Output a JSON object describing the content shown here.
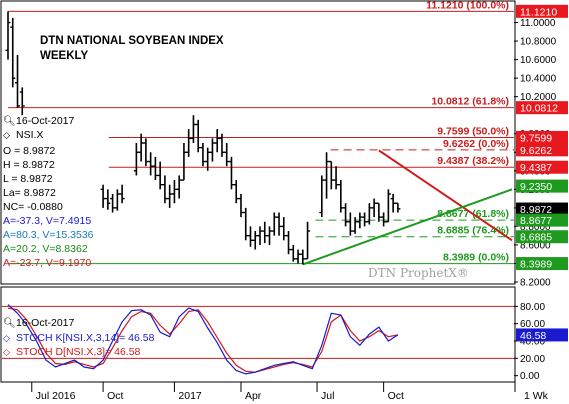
{
  "chart_data": {
    "type": "ohlc",
    "title": "DTN NATIONAL SOYBEAN INDEX",
    "subtitle": "WEEKLY",
    "watermark": "DTN ProphetX®",
    "info": {
      "date": "16-Oct-2017",
      "symbol": "NSI.X",
      "lines": [
        {
          "text": "O = 8.9872",
          "color": "#000000"
        },
        {
          "text": "H = 8.9872",
          "color": "#000000"
        },
        {
          "text": "L = 8.9872",
          "color": "#000000"
        },
        {
          "text": "La= 8.9872",
          "color": "#000000"
        },
        {
          "text": "NC= -0.0880",
          "color": "#000000"
        },
        {
          "text": "A=-37.3, V=7.4915",
          "color": "#1a1ad0"
        },
        {
          "text": "A=80.3, V=15.3536",
          "color": "#1a7ab8"
        },
        {
          "text": "A=20.2, V=8.8362",
          "color": "#1a8a1a"
        },
        {
          "text": "A=-23.7, V=9.1970",
          "color": "#d01a1a"
        }
      ]
    },
    "price_axis": {
      "min": 8.2,
      "max": 11.2,
      "ticks": [
        11.0,
        10.8,
        10.6,
        10.4,
        10.2,
        9.8,
        9.6,
        9.4,
        9.2,
        9.0,
        8.8,
        8.6,
        8.4,
        8.2
      ],
      "tick_labels": [
        "11.0000",
        "10.8000",
        "10.6000",
        "10.4000",
        "10.2000",
        "9.8000",
        "9.6000",
        "9.4000",
        "9.2000",
        "9.0000",
        "8.8000",
        "8.6000",
        "8.4000",
        "8.2000"
      ]
    },
    "price_badges": [
      {
        "value": 11.121,
        "label": "11.1210",
        "color": "#e8191e"
      },
      {
        "value": 10.0812,
        "label": "10.0812",
        "color": "#e8191e"
      },
      {
        "value": 9.7599,
        "label": "9.7599",
        "color": "#e8191e"
      },
      {
        "value": 9.6262,
        "label": "9.6262",
        "color": "#e8191e"
      },
      {
        "value": 9.4387,
        "label": "9.4387",
        "color": "#e8191e"
      },
      {
        "value": 9.235,
        "label": "9.2350",
        "color": "#1e9a1e"
      },
      {
        "value": 8.9872,
        "label": "8.9872",
        "color": "#000000"
      },
      {
        "value": 8.8677,
        "label": "8.8677",
        "color": "#1e9a1e"
      },
      {
        "value": 8.6885,
        "label": "8.6885",
        "color": "#1e9a1e"
      },
      {
        "value": 8.3989,
        "label": "8.3989",
        "color": "#1e9a1e"
      }
    ],
    "fib_levels": [
      {
        "value": 11.121,
        "label": "11.1210 (100.0%)",
        "color": "#c81e1e",
        "style": "solid",
        "x_from": 0.0
      },
      {
        "value": 10.0812,
        "label": "10.0812 (61.8%)",
        "color": "#c81e1e",
        "style": "solid",
        "x_from": 0.0
      },
      {
        "value": 9.7599,
        "label": "9.7599 (50.0%)",
        "color": "#c81e1e",
        "style": "solid",
        "x_from": 0.2
      },
      {
        "value": 9.6262,
        "label": "9.6262 (0.0%)",
        "color": "#c81e1e",
        "style": "dash",
        "x_from": 0.64
      },
      {
        "value": 9.4387,
        "label": "9.4387 (38.2%)",
        "color": "#c81e1e",
        "style": "solid",
        "x_from": 0.2
      },
      {
        "value": 8.8677,
        "label": "8.8677 (61.8%)",
        "color": "#1e9a1e",
        "style": "dash",
        "x_from": 0.61
      },
      {
        "value": 8.6885,
        "label": "8.6885 (76.4%)",
        "color": "#1e9a1e",
        "style": "dash",
        "x_from": 0.61
      },
      {
        "value": 8.3989,
        "label": "8.3989 (0.0%)",
        "color": "#1e9a1e",
        "style": "solid",
        "x_from": 0.0
      }
    ],
    "trendlines": [
      {
        "color": "#d01a1a",
        "from": [
          78,
          9.62
        ],
        "to": [
          106,
          8.65
        ]
      },
      {
        "color": "#1e9a1e",
        "from": [
          62,
          8.39
        ],
        "to": [
          106,
          9.2
        ]
      }
    ],
    "ohlc": [
      {
        "x": 0,
        "h": 11.12,
        "l": 10.6,
        "o": 10.7,
        "c": 11.0
      },
      {
        "x": 1,
        "h": 11.05,
        "l": 10.3,
        "o": 10.95,
        "c": 10.4
      },
      {
        "x": 2,
        "h": 10.65,
        "l": 10.08,
        "o": 10.35,
        "c": 10.1
      },
      {
        "x": 3,
        "h": 10.3,
        "l": 10.0,
        "o": 10.25,
        "c": 10.1
      },
      {
        "x": 20,
        "h": 9.25,
        "l": 9.0,
        "o": 9.2,
        "c": 9.1
      },
      {
        "x": 21,
        "h": 9.2,
        "l": 8.98,
        "o": 9.1,
        "c": 9.05
      },
      {
        "x": 22,
        "h": 9.15,
        "l": 8.95,
        "o": 9.1,
        "c": 9.0
      },
      {
        "x": 23,
        "h": 9.2,
        "l": 8.97,
        "o": 9.0,
        "c": 9.15
      },
      {
        "x": 24,
        "h": 9.25,
        "l": 9.05,
        "o": 9.15,
        "c": 9.1
      },
      {
        "x": 27,
        "h": 9.7,
        "l": 9.35,
        "o": 9.4,
        "c": 9.6
      },
      {
        "x": 28,
        "h": 9.8,
        "l": 9.5,
        "o": 9.6,
        "c": 9.7
      },
      {
        "x": 29,
        "h": 9.75,
        "l": 9.45,
        "o": 9.7,
        "c": 9.5
      },
      {
        "x": 30,
        "h": 9.6,
        "l": 9.35,
        "o": 9.5,
        "c": 9.45
      },
      {
        "x": 31,
        "h": 9.55,
        "l": 9.3,
        "o": 9.45,
        "c": 9.35
      },
      {
        "x": 32,
        "h": 9.5,
        "l": 9.2,
        "o": 9.35,
        "c": 9.25
      },
      {
        "x": 33,
        "h": 9.35,
        "l": 9.05,
        "o": 9.25,
        "c": 9.1
      },
      {
        "x": 34,
        "h": 9.25,
        "l": 9.0,
        "o": 9.1,
        "c": 9.15
      },
      {
        "x": 35,
        "h": 9.3,
        "l": 9.05,
        "o": 9.15,
        "c": 9.2
      },
      {
        "x": 36,
        "h": 9.35,
        "l": 9.1,
        "o": 9.2,
        "c": 9.3
      },
      {
        "x": 37,
        "h": 9.7,
        "l": 9.3,
        "o": 9.3,
        "c": 9.6
      },
      {
        "x": 38,
        "h": 9.85,
        "l": 9.55,
        "o": 9.6,
        "c": 9.75
      },
      {
        "x": 39,
        "h": 10.0,
        "l": 9.7,
        "o": 9.75,
        "c": 9.9
      },
      {
        "x": 40,
        "h": 9.95,
        "l": 9.6,
        "o": 9.9,
        "c": 9.65
      },
      {
        "x": 41,
        "h": 9.7,
        "l": 9.45,
        "o": 9.65,
        "c": 9.5
      },
      {
        "x": 42,
        "h": 9.65,
        "l": 9.4,
        "o": 9.5,
        "c": 9.6
      },
      {
        "x": 43,
        "h": 9.75,
        "l": 9.5,
        "o": 9.6,
        "c": 9.7
      },
      {
        "x": 44,
        "h": 9.85,
        "l": 9.6,
        "o": 9.7,
        "c": 9.75
      },
      {
        "x": 45,
        "h": 9.8,
        "l": 9.55,
        "o": 9.75,
        "c": 9.6
      },
      {
        "x": 46,
        "h": 9.7,
        "l": 9.45,
        "o": 9.6,
        "c": 9.5
      },
      {
        "x": 47,
        "h": 9.55,
        "l": 9.2,
        "o": 9.5,
        "c": 9.25
      },
      {
        "x": 48,
        "h": 9.3,
        "l": 9.05,
        "o": 9.25,
        "c": 9.1
      },
      {
        "x": 49,
        "h": 9.15,
        "l": 8.9,
        "o": 9.1,
        "c": 8.95
      },
      {
        "x": 50,
        "h": 9.0,
        "l": 8.65,
        "o": 8.95,
        "c": 8.7
      },
      {
        "x": 51,
        "h": 8.8,
        "l": 8.58,
        "o": 8.7,
        "c": 8.65
      },
      {
        "x": 52,
        "h": 8.75,
        "l": 8.55,
        "o": 8.65,
        "c": 8.7
      },
      {
        "x": 53,
        "h": 8.8,
        "l": 8.6,
        "o": 8.7,
        "c": 8.75
      },
      {
        "x": 54,
        "h": 8.85,
        "l": 8.62,
        "o": 8.75,
        "c": 8.7
      },
      {
        "x": 55,
        "h": 8.8,
        "l": 8.6,
        "o": 8.7,
        "c": 8.75
      },
      {
        "x": 56,
        "h": 8.95,
        "l": 8.7,
        "o": 8.75,
        "c": 8.9
      },
      {
        "x": 57,
        "h": 8.95,
        "l": 8.7,
        "o": 8.9,
        "c": 8.8
      },
      {
        "x": 58,
        "h": 8.9,
        "l": 8.65,
        "o": 8.8,
        "c": 8.7
      },
      {
        "x": 59,
        "h": 8.75,
        "l": 8.5,
        "o": 8.7,
        "c": 8.55
      },
      {
        "x": 60,
        "h": 8.6,
        "l": 8.42,
        "o": 8.55,
        "c": 8.45
      },
      {
        "x": 61,
        "h": 8.55,
        "l": 8.4,
        "o": 8.45,
        "c": 8.5
      },
      {
        "x": 62,
        "h": 8.55,
        "l": 8.39,
        "o": 8.5,
        "c": 8.45
      },
      {
        "x": 63,
        "h": 8.85,
        "l": 8.45,
        "o": 8.45,
        "c": 8.75
      },
      {
        "x": 66,
        "h": 9.35,
        "l": 8.9,
        "o": 8.95,
        "c": 9.3
      },
      {
        "x": 67,
        "h": 9.6,
        "l": 9.1,
        "o": 9.3,
        "c": 9.5
      },
      {
        "x": 68,
        "h": 9.5,
        "l": 9.2,
        "o": 9.5,
        "c": 9.3
      },
      {
        "x": 69,
        "h": 9.45,
        "l": 9.2,
        "o": 9.3,
        "c": 9.25
      },
      {
        "x": 70,
        "h": 9.3,
        "l": 8.95,
        "o": 9.25,
        "c": 9.0
      },
      {
        "x": 71,
        "h": 9.05,
        "l": 8.8,
        "o": 9.0,
        "c": 8.85
      },
      {
        "x": 72,
        "h": 8.95,
        "l": 8.7,
        "o": 8.85,
        "c": 8.75
      },
      {
        "x": 73,
        "h": 8.9,
        "l": 8.72,
        "o": 8.75,
        "c": 8.85
      },
      {
        "x": 74,
        "h": 8.95,
        "l": 8.78,
        "o": 8.85,
        "c": 8.9
      },
      {
        "x": 75,
        "h": 8.95,
        "l": 8.8,
        "o": 8.9,
        "c": 8.85
      },
      {
        "x": 76,
        "h": 9.05,
        "l": 8.82,
        "o": 8.85,
        "c": 9.0
      },
      {
        "x": 77,
        "h": 9.1,
        "l": 8.9,
        "o": 9.0,
        "c": 9.05
      },
      {
        "x": 78,
        "h": 9.05,
        "l": 8.85,
        "o": 9.05,
        "c": 8.9
      },
      {
        "x": 79,
        "h": 8.95,
        "l": 8.8,
        "o": 8.9,
        "c": 8.85
      },
      {
        "x": 80,
        "h": 9.2,
        "l": 8.85,
        "o": 8.85,
        "c": 9.15
      },
      {
        "x": 81,
        "h": 9.15,
        "l": 8.95,
        "o": 9.1,
        "c": 9.05
      },
      {
        "x": 82,
        "h": 9.05,
        "l": 8.95,
        "o": 9.05,
        "c": 8.99
      }
    ],
    "x_domain": [
      0,
      106
    ],
    "x_axis_labels": [
      {
        "x": 5,
        "label": "Jul 2016"
      },
      {
        "x": 20,
        "label": "Oct"
      },
      {
        "x": 35,
        "label": "2017"
      },
      {
        "x": 49,
        "label": "Apr"
      },
      {
        "x": 65,
        "label": "Jul"
      },
      {
        "x": 79,
        "label": "Oct"
      }
    ],
    "x_period_label": "1 Wk",
    "stochastic": {
      "date": "16-Oct-2017",
      "k_label": "STOCH K[NSI.X,3,14]= 46.58",
      "d_label": "STOCH D[NSI.X,3]= 46.58",
      "k_color": "#1a1ad0",
      "d_color": "#d01a1a",
      "badge": "46.58",
      "y_range": [
        -5,
        100
      ],
      "ticks": [
        80.0,
        60.0,
        40.0,
        20.0,
        0.0
      ],
      "tick_labels": [
        "80.00",
        "60.00",
        "40.00",
        "20.00",
        "0.00"
      ],
      "ref_lines": [
        80,
        20
      ],
      "x": [
        0,
        2,
        4,
        6,
        8,
        10,
        12,
        14,
        16,
        18,
        20,
        22,
        24,
        26,
        28,
        30,
        32,
        34,
        36,
        38,
        40,
        42,
        44,
        46,
        48,
        50,
        52,
        54,
        56,
        58,
        60,
        62,
        64,
        66,
        68,
        70,
        72,
        74,
        76,
        78,
        80,
        82
      ],
      "k": [
        82,
        72,
        58,
        40,
        18,
        10,
        14,
        18,
        10,
        8,
        18,
        40,
        62,
        75,
        76,
        70,
        50,
        45,
        68,
        78,
        74,
        55,
        38,
        18,
        6,
        2,
        4,
        8,
        12,
        14,
        16,
        12,
        8,
        35,
        72,
        70,
        45,
        35,
        48,
        56,
        40,
        47
      ],
      "d": [
        78,
        76,
        64,
        46,
        26,
        14,
        13,
        16,
        13,
        10,
        14,
        32,
        52,
        68,
        74,
        72,
        58,
        48,
        60,
        74,
        76,
        62,
        44,
        26,
        12,
        5,
        4,
        7,
        10,
        13,
        15,
        13,
        10,
        28,
        62,
        70,
        52,
        40,
        45,
        52,
        45,
        47
      ]
    }
  }
}
